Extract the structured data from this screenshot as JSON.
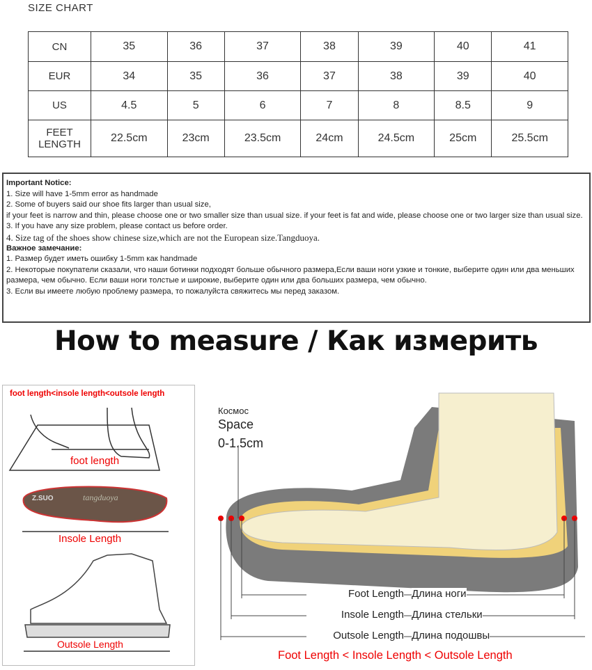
{
  "title": "SIZE CHART",
  "table": {
    "rows": [
      {
        "label": "CN",
        "values": [
          "35",
          "36",
          "37",
          "38",
          "39",
          "40",
          "41"
        ]
      },
      {
        "label": "EUR",
        "values": [
          "34",
          "35",
          "36",
          "37",
          "38",
          "39",
          "40"
        ]
      },
      {
        "label": "US",
        "values": [
          "4.5",
          "5",
          "6",
          "7",
          "8",
          "8.5",
          "9"
        ]
      },
      {
        "label": "FEET LENGTH",
        "values": [
          "22.5cm",
          "23cm",
          "23.5cm",
          "24cm",
          "24.5cm",
          "25cm",
          "25.5cm"
        ]
      }
    ]
  },
  "notice": {
    "heading_en": "Important Notice:",
    "lines_en": [
      "1. Size will have 1-5mm error as handmade",
      "2. Some of buyers said our shoe fits larger than usual size,",
      "if your feet is narrow and thin, please choose one or two smaller size than usual size. if your feet is fat and wide, please choose one or two larger size than usual size.",
      "3. If you have any size problem, please contact us before order."
    ],
    "line4": "4. Size tag of the shoes show chinese size,which are not the European size.Tangduoya.",
    "heading_ru": "Важное замечание:",
    "lines_ru": [
      "1. Размер будет иметь ошибку 1-5mm как handmade",
      "2. Некоторые покупатели сказали, что наши ботинки подходят больше обычного размера,Если ваши ноги узкие и тонкие, выберите один или два меньших размера, чем обычно. Если ваши ноги толстые и широкие, выберите один или два больших размера, чем обычно.",
      "3. Если вы имеете любую проблему размера, то пожалуйста свяжитесь мы перед заказом."
    ]
  },
  "how_title": "How to measure / Как измерить",
  "left": {
    "top_label": "foot length<insole length<outsole length",
    "foot_length": "foot length",
    "insole_length": "Insole Length",
    "outsole_length": "Outsole Length",
    "insole_brand": "Z.SUO",
    "insole_logo": "tangduoya"
  },
  "right": {
    "space_ru": "Космос",
    "space_en": "Space",
    "space_value": "0-1.5cm",
    "measures": [
      {
        "en": "Foot Length",
        "ru": "Длина ноги"
      },
      {
        "en": "Insole Length",
        "ru": "Длина стельки"
      },
      {
        "en": "Outsole Length",
        "ru": "Длина подошвы"
      }
    ],
    "bottom_label": "Foot Length < Insole Length < Outsole Length"
  },
  "colors": {
    "red": "#e00000",
    "sole": "#7a7a7a",
    "foot": "#f6efcf",
    "insole": "#f0d27a"
  }
}
